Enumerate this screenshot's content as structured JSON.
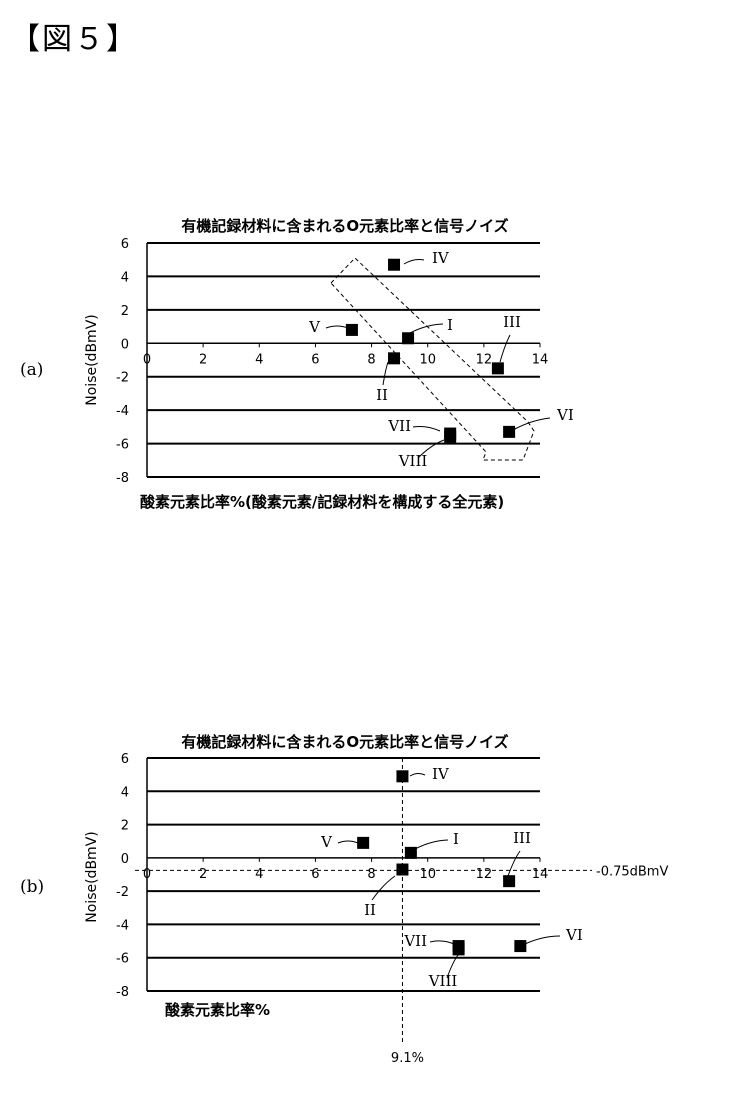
{
  "figure_label": "【図５】",
  "panel_labels": [
    "(a)",
    "(b)"
  ],
  "chart_data": [
    {
      "type": "scatter",
      "title": "有機記録材料に含まれるO元素比率と信号ノイズ",
      "xlabel": "酸素元素比率%(酸素元素/記録材料を構成する全元素)",
      "ylabel": "Noise(dBmV)",
      "xlim": [
        0,
        14
      ],
      "ylim": [
        -8,
        6
      ],
      "x_ticks": [
        "0",
        "2",
        "4",
        "6",
        "8",
        "10",
        "12",
        "14"
      ],
      "y_ticks": [
        "6",
        "4",
        "2",
        "0",
        "-2",
        "-4",
        "-6",
        "-8"
      ],
      "grid": "horizontal",
      "points": [
        {
          "label": "I",
          "x": 9.3,
          "y": 0.3
        },
        {
          "label": "II",
          "x": 8.8,
          "y": -0.9
        },
        {
          "label": "III",
          "x": 12.5,
          "y": -1.5
        },
        {
          "label": "IV",
          "x": 8.8,
          "y": 4.7
        },
        {
          "label": "V",
          "x": 7.3,
          "y": 0.8
        },
        {
          "label": "VI",
          "x": 12.9,
          "y": -5.3
        },
        {
          "label": "VII",
          "x": 10.8,
          "y": -5.4
        },
        {
          "label": "VIII",
          "x": 10.8,
          "y": -5.6
        }
      ],
      "annotation": "dashed region enclosing the points along a downward trend"
    },
    {
      "type": "scatter",
      "title": "有機記録材料に含まれるO元素比率と信号ノイズ",
      "xlabel": "酸素元素比率%",
      "ylabel": "Noise(dBmV)",
      "xlim": [
        0,
        14
      ],
      "ylim": [
        -8,
        6
      ],
      "x_ticks": [
        "0",
        "2",
        "4",
        "6",
        "8",
        "10",
        "12",
        "14"
      ],
      "y_ticks": [
        "6",
        "4",
        "2",
        "0",
        "-2",
        "-4",
        "-6",
        "-8"
      ],
      "grid": "horizontal",
      "points": [
        {
          "label": "I",
          "x": 9.4,
          "y": 0.3
        },
        {
          "label": "II",
          "x": 9.1,
          "y": -0.7
        },
        {
          "label": "III",
          "x": 12.9,
          "y": -1.4
        },
        {
          "label": "IV",
          "x": 9.1,
          "y": 4.9
        },
        {
          "label": "V",
          "x": 7.7,
          "y": 0.9
        },
        {
          "label": "VI",
          "x": 13.3,
          "y": -5.3
        },
        {
          "label": "VII",
          "x": 11.1,
          "y": -5.3
        },
        {
          "label": "VIII",
          "x": 11.1,
          "y": -5.5
        }
      ],
      "reference_lines": {
        "vertical": {
          "x": 9.1,
          "label": "9.1%"
        },
        "horizontal": {
          "y": -0.75,
          "label": "-0.75dBmV"
        }
      }
    }
  ]
}
